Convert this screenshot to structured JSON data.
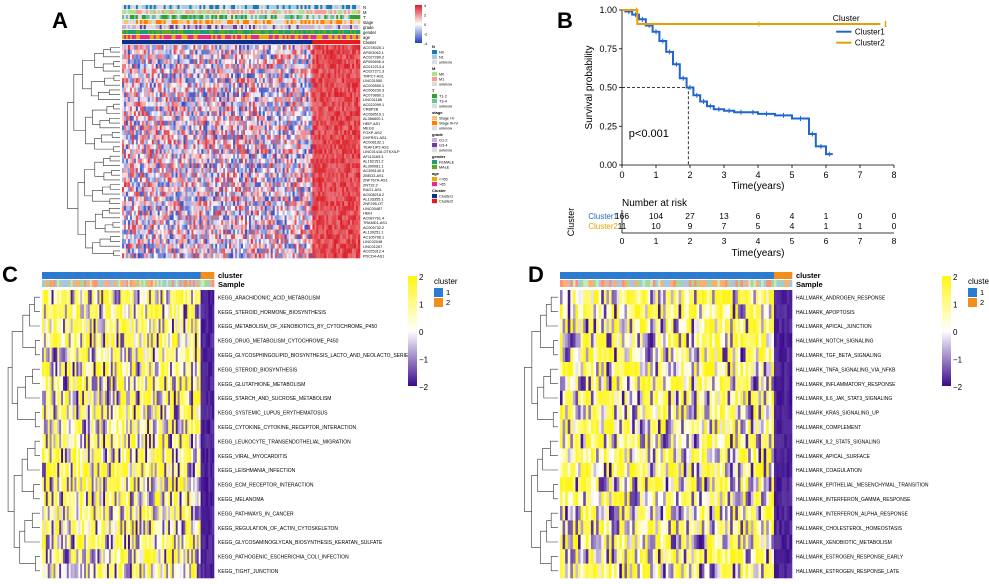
{
  "panels": {
    "a": {
      "letter": "A",
      "annotation_tracks": [
        "N",
        "M",
        "T",
        "stage",
        "grade",
        "gender",
        "age",
        "Cluster"
      ],
      "genes": [
        "AC078025.1",
        "AP003062.1",
        "AC027280.2",
        "AP000696.4",
        "AC012213.4",
        "AC027271.3",
        "TRPC7-AS1",
        "LINC01550",
        "AC005550.1",
        "AC006230.3",
        "AC079860.1",
        "LINC01186",
        "AC022099.1",
        "CRBP2B",
        "AC068519.1",
        "AL356600.1",
        "HEIP-AS1",
        "MEG3",
        "FOXP-AS2",
        "DHFRS1-AS1",
        "AC008132.1",
        "TEAF1IP2-AS1",
        "LINC01416-OTKXILP",
        "AF113169.3",
        "AL162151.2",
        "AL390081.1",
        "AC395140.3",
        "ZBED3-AS1",
        "ZNF767A-AS1",
        "ZNT32.2",
        "RAG1-AS1",
        "AC008216.2",
        "AL133355.1",
        "ZNF295-OT",
        "LINC00487",
        "HEIH",
        "AC087761.4",
        "TRAMD1-AS1",
        "AC009732.2",
        "AL139251.1",
        "AC105796.1",
        "LINC02048",
        "LINC01267",
        "AC025312.4",
        "PDCD4-AS1"
      ],
      "legend": [
        {
          "title": "N",
          "items": [
            "N0",
            "N1",
            "unknow"
          ],
          "colors": [
            "#1f78b4",
            "#a6cee3",
            "#dddddd"
          ]
        },
        {
          "title": "M",
          "items": [
            "M0",
            "M1",
            "unknow"
          ],
          "colors": [
            "#b2df8a",
            "#fb9a99",
            "#dddddd"
          ]
        },
        {
          "title": "T",
          "items": [
            "T1-2",
            "T3-4",
            "unknow"
          ],
          "colors": [
            "#33a02c",
            "#66c2a5",
            "#dddddd"
          ]
        },
        {
          "title": "stage",
          "items": [
            "Stage I-II",
            "Stage III-IV",
            "unknow"
          ],
          "colors": [
            "#fdbf6f",
            "#ff7f00",
            "#dddddd"
          ]
        },
        {
          "title": "grade",
          "items": [
            "G1-2",
            "G3-4",
            "unknow"
          ],
          "colors": [
            "#cab2d6",
            "#6a3d9a",
            "#dddddd"
          ]
        },
        {
          "title": "gender",
          "items": [
            "FEMALE",
            "MALE"
          ],
          "colors": [
            "#1b9e77",
            "#66a61e"
          ]
        },
        {
          "title": "age",
          "items": [
            "<=65",
            ">65"
          ],
          "colors": [
            "#e6ab02",
            "#e7298a"
          ]
        },
        {
          "title": "Cluster",
          "items": [
            "Cluster1",
            "Cluster2"
          ],
          "colors": [
            "#0b2f8f",
            "#e41a1c"
          ]
        }
      ],
      "scale_ticks": [
        "4",
        "2",
        "0",
        "-2",
        "-4"
      ]
    },
    "b": {
      "letter": "B",
      "pvalue": "p<0.001",
      "ylabel": "Survival probability",
      "xlabel": "Time(years)",
      "risk_title": "Number at risk",
      "risk_ylabel": "Cluster",
      "risk_xlabel": "Time(years)",
      "legend_title": "Cluster",
      "risk_table": [
        {
          "name": "Cluster1",
          "counts": [
            "166",
            "104",
            "27",
            "13",
            "6",
            "4",
            "1",
            "0",
            "0"
          ]
        },
        {
          "name": "Cluster2",
          "counts": [
            "11",
            "10",
            "9",
            "7",
            "5",
            "4",
            "1",
            "1",
            "0"
          ]
        }
      ]
    },
    "c": {
      "letter": "C",
      "legend_cluster_title": "cluster",
      "legend_cluster_items": [
        "1",
        "2"
      ],
      "top_labels": [
        "cluster",
        "Sample"
      ],
      "scale_ticks": [
        "2",
        "1",
        "0",
        "−1",
        "−2"
      ],
      "pathways": [
        "KEGG_ARACHIDONIC_ACID_METABOLISM",
        "KEGG_STEROID_HORMONE_BIOSYNTHESIS",
        "KEGG_METABOLISM_OF_XENOBIOTICS_BY_CYTOCHROME_P450",
        "KEGG_DRUG_METABOLISM_CYTOCHROME_P450",
        "KEGG_GLYCOSPHINGOLIPID_BIOSYNTHESIS_LACTO_AND_NEOLACTO_SERIES",
        "KEGG_STEROID_BIOSYNTHESIS",
        "KEGG_GLUTATHIONE_METABOLISM",
        "KEGG_STARCH_AND_SUCROSE_METABOLISM",
        "KEGG_SYSTEMIC_LUPUS_ERYTHEMATOSUS",
        "KEGG_CYTOKINE_CYTOKINE_RECEPTOR_INTERACTION",
        "KEGG_LEUKOCYTE_TRANSENDOTHELIAL_MIGRATION",
        "KEGG_VIRAL_MYOCARDITIS",
        "KEGG_LEISHMANIA_INFECTION",
        "KEGG_ECM_RECEPTOR_INTERACTION",
        "KEGG_MELANOMA",
        "KEGG_PATHWAYS_IN_CANCER",
        "KEGG_REGULATION_OF_ACTIN_CYTOSKELETON",
        "KEGG_GLYCOSAMINOGLYCAN_BIOSYNTHESIS_KERATAN_SULFATE",
        "KEGG_PATHOGENIC_ESCHERICHIA_COLI_INFECTION",
        "KEGG_TIGHT_JUNCTION"
      ]
    },
    "d": {
      "letter": "D",
      "legend_cluster_title": "cluster",
      "legend_cluster_items": [
        "1",
        "2"
      ],
      "top_labels": [
        "cluster",
        "Sample"
      ],
      "scale_ticks": [
        "2",
        "1",
        "0",
        "−1",
        "−2"
      ],
      "pathways": [
        "HALLMARK_ANDROGEN_RESPONSE",
        "HALLMARK_APOPTOSIS",
        "HALLMARK_APICAL_JUNCTION",
        "HALLMARK_NOTCH_SIGNALING",
        "HALLMARK_TGF_BETA_SIGNALING",
        "HALLMARK_TNFA_SIGNALING_VIA_NFKB",
        "HALLMARK_INFLAMMATORY_RESPONSE",
        "HALLMARK_IL6_JAK_STAT3_SIGNALING",
        "HALLMARK_KRAS_SIGNALING_UP",
        "HALLMARK_COMPLEMENT",
        "HALLMARK_IL2_STAT5_SIGNALING",
        "HALLMARK_APICAL_SURFACE",
        "HALLMARK_COAGULATION",
        "HALLMARK_EPITHELIAL_MESENCHYMAL_TRANSITION",
        "HALLMARK_INTERFERON_GAMMA_RESPONSE",
        "HALLMARK_INTERFERON_ALPHA_RESPONSE",
        "HALLMARK_CHOLESTEROL_HOMEOSTASIS",
        "HALLMARK_XENOBIOTIC_METABOLISM",
        "HALLMARK_ESTROGEN_RESPONSE_EARLY",
        "HALLMARK_ESTROGEN_RESPONSE_LATE"
      ]
    }
  },
  "chart_data": [
    {
      "type": "line",
      "title": "",
      "xlabel": "Time(years)",
      "ylabel": "Survival probability",
      "xlim": [
        0,
        8
      ],
      "ylim": [
        0,
        1
      ],
      "xticks": [
        "0",
        "1",
        "2",
        "3",
        "4",
        "5",
        "6",
        "7",
        "8"
      ],
      "yticks": [
        "0.00",
        "0.25",
        "0.50",
        "0.75",
        "1.00"
      ],
      "legend": {
        "title": "Cluster",
        "position": "top-right"
      },
      "series": [
        {
          "name": "Cluster1",
          "color": "#2166ce",
          "x": [
            0,
            0.1,
            0.3,
            0.5,
            0.7,
            0.9,
            1.1,
            1.3,
            1.5,
            1.7,
            1.9,
            2.1,
            2.3,
            2.5,
            2.7,
            3.0,
            3.3,
            3.7,
            4.0,
            4.5,
            5.0,
            5.5,
            5.7,
            6.0,
            6.2
          ],
          "y": [
            1.0,
            0.99,
            0.97,
            0.94,
            0.9,
            0.86,
            0.8,
            0.73,
            0.65,
            0.56,
            0.5,
            0.45,
            0.41,
            0.38,
            0.36,
            0.35,
            0.34,
            0.34,
            0.33,
            0.32,
            0.3,
            0.2,
            0.12,
            0.07,
            0.07
          ]
        },
        {
          "name": "Cluster2",
          "color": "#e6a000",
          "x": [
            0,
            0.4,
            0.45,
            7.6
          ],
          "y": [
            1.0,
            1.0,
            0.91,
            0.91
          ]
        }
      ]
    }
  ]
}
